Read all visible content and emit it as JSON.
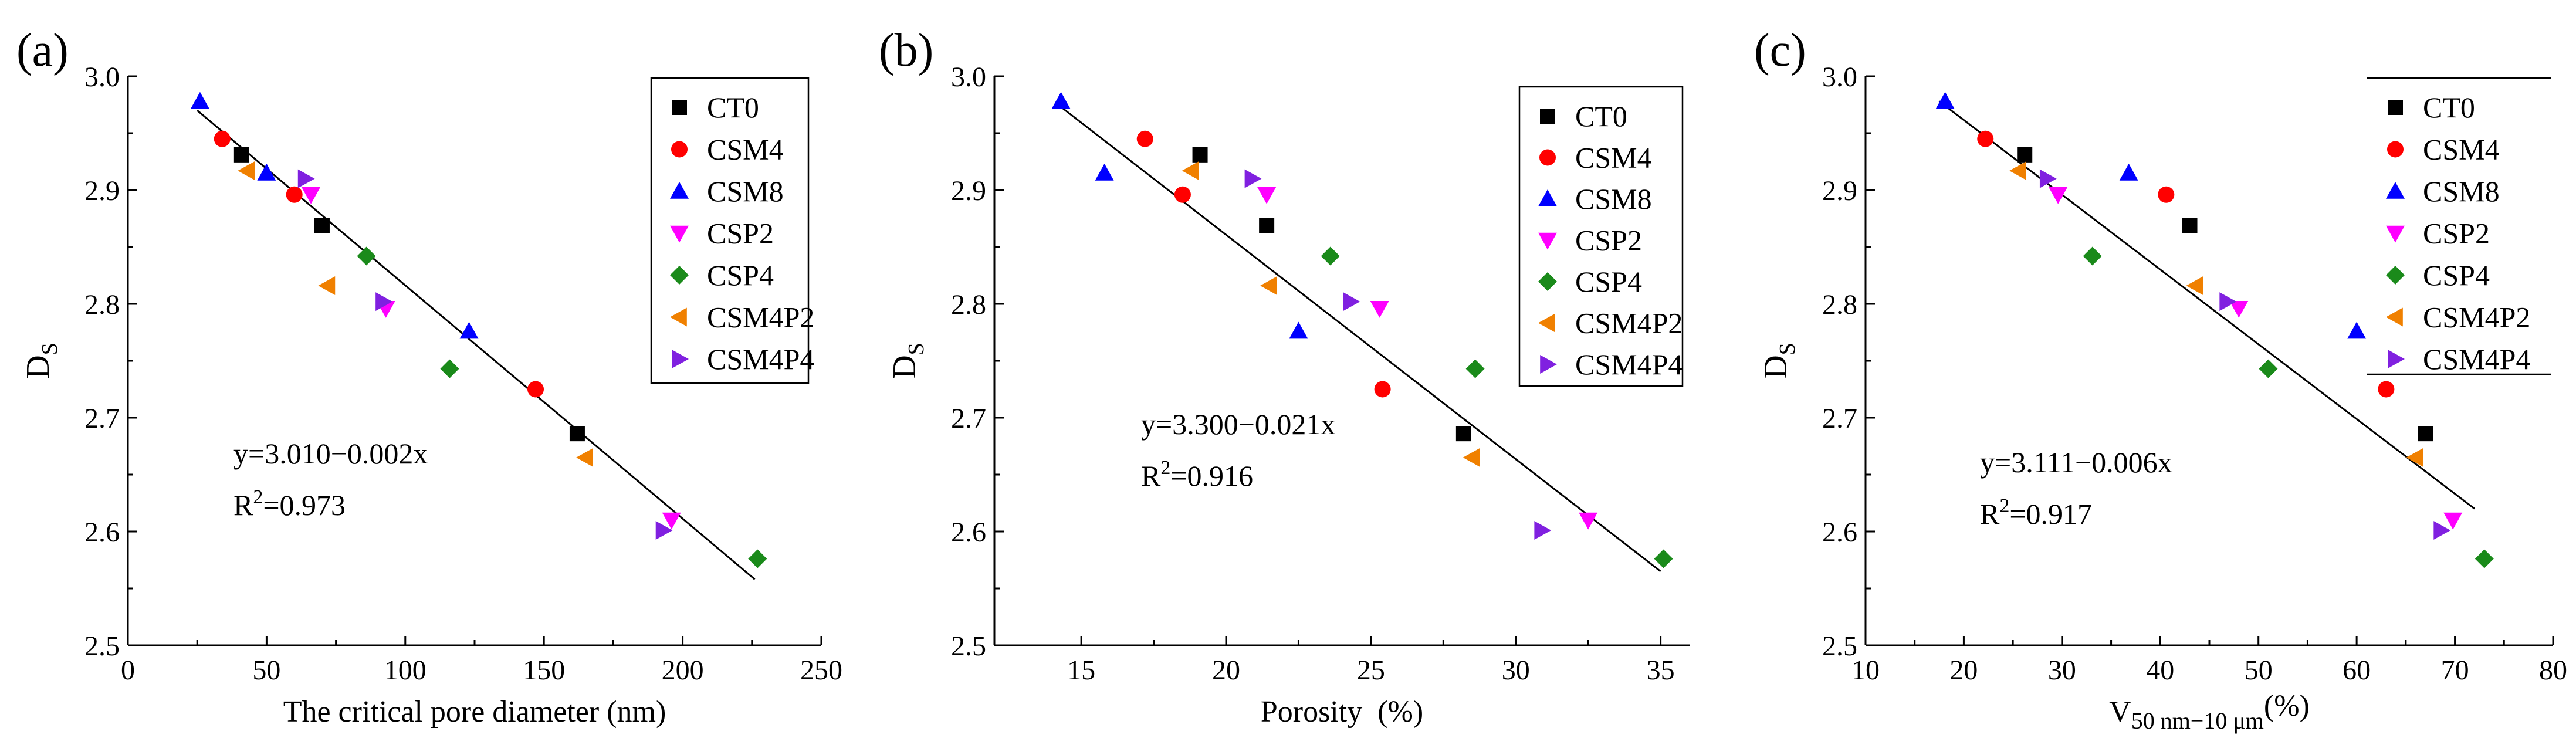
{
  "series_styles": {
    "CT0": {
      "marker": "square",
      "color": "#000000"
    },
    "CSM4": {
      "marker": "circle",
      "color": "#ff0000"
    },
    "CSM8": {
      "marker": "triUp",
      "color": "#0000ff"
    },
    "CSP2": {
      "marker": "triDown",
      "color": "#ff00ff"
    },
    "CSP4": {
      "marker": "diamond",
      "color": "#1a8a1a"
    },
    "CSM4P2": {
      "marker": "triLeft",
      "color": "#f08000"
    },
    "CSM4P4": {
      "marker": "triRight",
      "color": "#8020e0"
    }
  },
  "chart_data": [
    {
      "type": "scatter",
      "panel_label": "(a)",
      "xlabel": "The critical pore diameter (nm)",
      "ylabel": "D",
      "ylabel_sub": "S",
      "xlim": [
        0,
        250
      ],
      "ylim": [
        2.5,
        3.0
      ],
      "xticks": [
        "0",
        "50",
        "100",
        "150",
        "200",
        "250"
      ],
      "yticks": [
        "2.5",
        "2.6",
        "2.7",
        "2.8",
        "2.9",
        "3.0"
      ],
      "equation": "y=3.010−0.002x",
      "r2_prefix": "R",
      "r2_sup": "2",
      "r2_value": "=0.973",
      "legend_position": "top-right",
      "fit_line": {
        "x1": 25,
        "y1": 2.97,
        "x2": 226,
        "y2": 2.558
      },
      "series": [
        {
          "name": "CT0",
          "points": [
            [
              41,
              2.931
            ],
            [
              70,
              2.869
            ],
            [
              162,
              2.686
            ]
          ]
        },
        {
          "name": "CSM4",
          "points": [
            [
              34,
              2.945
            ],
            [
              60,
              2.896
            ],
            [
              147,
              2.725
            ]
          ]
        },
        {
          "name": "CSM8",
          "points": [
            [
              26,
              2.978
            ],
            [
              50,
              2.915
            ],
            [
              123,
              2.776
            ]
          ]
        },
        {
          "name": "CSP2",
          "points": [
            [
              66,
              2.896
            ],
            [
              93,
              2.796
            ],
            [
              196,
              2.61
            ]
          ]
        },
        {
          "name": "CSP4",
          "points": [
            [
              86,
              2.842
            ],
            [
              116,
              2.743
            ],
            [
              227,
              2.576
            ]
          ]
        },
        {
          "name": "CSM4P2",
          "points": [
            [
              43,
              2.917
            ],
            [
              72,
              2.816
            ],
            [
              165,
              2.665
            ]
          ]
        },
        {
          "name": "CSM4P4",
          "points": [
            [
              64,
              2.91
            ],
            [
              92,
              2.802
            ],
            [
              193,
              2.601
            ]
          ]
        }
      ]
    },
    {
      "type": "scatter",
      "panel_label": "(b)",
      "xlabel": "Porosity  (%)",
      "ylabel": "D",
      "ylabel_sub": "S",
      "xlim": [
        12,
        36
      ],
      "ylim": [
        2.5,
        3.0
      ],
      "xticks": [
        "15",
        "20",
        "25",
        "30",
        "35"
      ],
      "xtick_values": [
        15,
        20,
        25,
        30,
        35
      ],
      "yticks": [
        "2.5",
        "2.6",
        "2.7",
        "2.8",
        "2.9",
        "3.0"
      ],
      "equation": "y=3.300−0.021x",
      "r2_prefix": "R",
      "r2_sup": "2",
      "r2_value": "=0.916",
      "legend_position": "top-right",
      "fit_line": {
        "x1": 14.2,
        "y1": 2.975,
        "x2": 35.0,
        "y2": 2.565
      },
      "series": [
        {
          "name": "CT0",
          "points": [
            [
              19.1,
              2.931
            ],
            [
              21.4,
              2.869
            ],
            [
              28.2,
              2.686
            ]
          ]
        },
        {
          "name": "CSM4",
          "points": [
            [
              17.2,
              2.945
            ],
            [
              18.5,
              2.896
            ],
            [
              25.4,
              2.725
            ]
          ]
        },
        {
          "name": "CSM8",
          "points": [
            [
              14.3,
              2.978
            ],
            [
              15.8,
              2.915
            ],
            [
              22.5,
              2.776
            ]
          ]
        },
        {
          "name": "CSP2",
          "points": [
            [
              21.4,
              2.896
            ],
            [
              25.3,
              2.796
            ],
            [
              32.5,
              2.61
            ]
          ]
        },
        {
          "name": "CSP4",
          "points": [
            [
              23.6,
              2.842
            ],
            [
              28.6,
              2.743
            ],
            [
              35.1,
              2.576
            ]
          ]
        },
        {
          "name": "CSM4P2",
          "points": [
            [
              18.8,
              2.917
            ],
            [
              21.5,
              2.816
            ],
            [
              28.5,
              2.665
            ]
          ]
        },
        {
          "name": "CSM4P4",
          "points": [
            [
              20.9,
              2.91
            ],
            [
              24.3,
              2.802
            ],
            [
              30.9,
              2.601
            ]
          ]
        }
      ]
    },
    {
      "type": "scatter",
      "panel_label": "(c)",
      "xlabel_main": "V",
      "xlabel_sub": "50 nm−10 μm",
      "xlabel_unit": "(%)",
      "ylabel": "D",
      "ylabel_sub": "S",
      "xlim": [
        10,
        80
      ],
      "ylim": [
        2.5,
        3.0
      ],
      "xticks": [
        "10",
        "20",
        "30",
        "40",
        "50",
        "60",
        "70",
        "80"
      ],
      "yticks": [
        "2.5",
        "2.6",
        "2.7",
        "2.8",
        "2.9",
        "3.0"
      ],
      "equation": "y=3.111−0.006x",
      "r2_prefix": "R",
      "r2_sup": "2",
      "r2_value": "=0.917",
      "legend_position": "top-right",
      "fit_line": {
        "x1": 17.5,
        "y1": 2.978,
        "x2": 72.0,
        "y2": 2.62
      },
      "series": [
        {
          "name": "CT0",
          "points": [
            [
              26.2,
              2.931
            ],
            [
              43.0,
              2.869
            ],
            [
              67.0,
              2.686
            ]
          ]
        },
        {
          "name": "CSM4",
          "points": [
            [
              22.2,
              2.945
            ],
            [
              40.6,
              2.896
            ],
            [
              63.0,
              2.725
            ]
          ]
        },
        {
          "name": "CSM8",
          "points": [
            [
              18.1,
              2.978
            ],
            [
              36.8,
              2.915
            ],
            [
              60.0,
              2.776
            ]
          ]
        },
        {
          "name": "CSP2",
          "points": [
            [
              29.6,
              2.896
            ],
            [
              48.0,
              2.796
            ],
            [
              69.8,
              2.61
            ]
          ]
        },
        {
          "name": "CSP4",
          "points": [
            [
              33.1,
              2.842
            ],
            [
              51.0,
              2.743
            ],
            [
              73.0,
              2.576
            ]
          ]
        },
        {
          "name": "CSM4P2",
          "points": [
            [
              25.6,
              2.917
            ],
            [
              43.6,
              2.816
            ],
            [
              66.0,
              2.665
            ]
          ]
        },
        {
          "name": "CSM4P4",
          "points": [
            [
              28.5,
              2.91
            ],
            [
              46.8,
              2.802
            ],
            [
              68.6,
              2.601
            ]
          ]
        }
      ]
    }
  ]
}
